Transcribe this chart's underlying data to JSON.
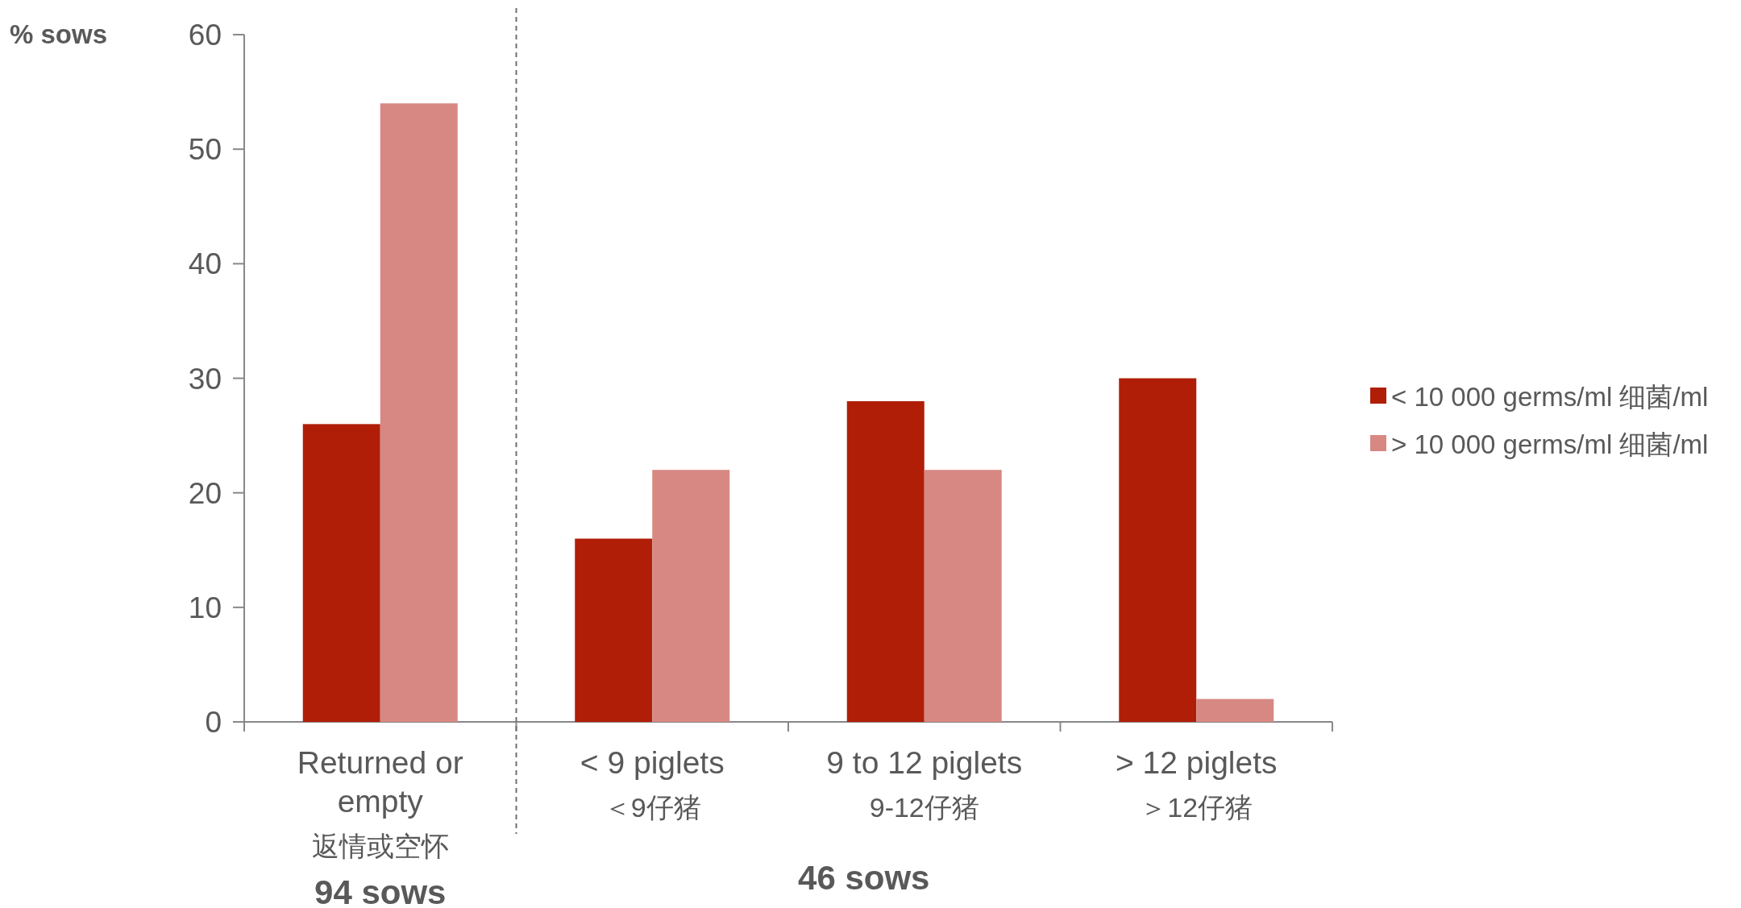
{
  "chart_data": {
    "type": "bar",
    "ylabel": "% sows",
    "categories": [
      "Returned or\nempty\n返情或空怀",
      "< 9 piglets\n＜9仔猪",
      "9 to 12 piglets\n9-12仔猪",
      "> 12 piglets\n＞12仔猪"
    ],
    "series": [
      {
        "name": "< 10 000 germs/ml 细菌/ml",
        "color": "#b01e08",
        "values": [
          26,
          16,
          28,
          30
        ]
      },
      {
        "name": "> 10 000 germs/ml 细菌/ml",
        "color": "#d88883",
        "values": [
          54,
          22,
          22,
          2
        ]
      }
    ],
    "ylim": [
      0,
      60
    ],
    "yticks": [
      0,
      10,
      20,
      30,
      40,
      50,
      60
    ],
    "grid": false,
    "legend": "right",
    "annotations": [
      "94 sows",
      "46 sows"
    ]
  }
}
